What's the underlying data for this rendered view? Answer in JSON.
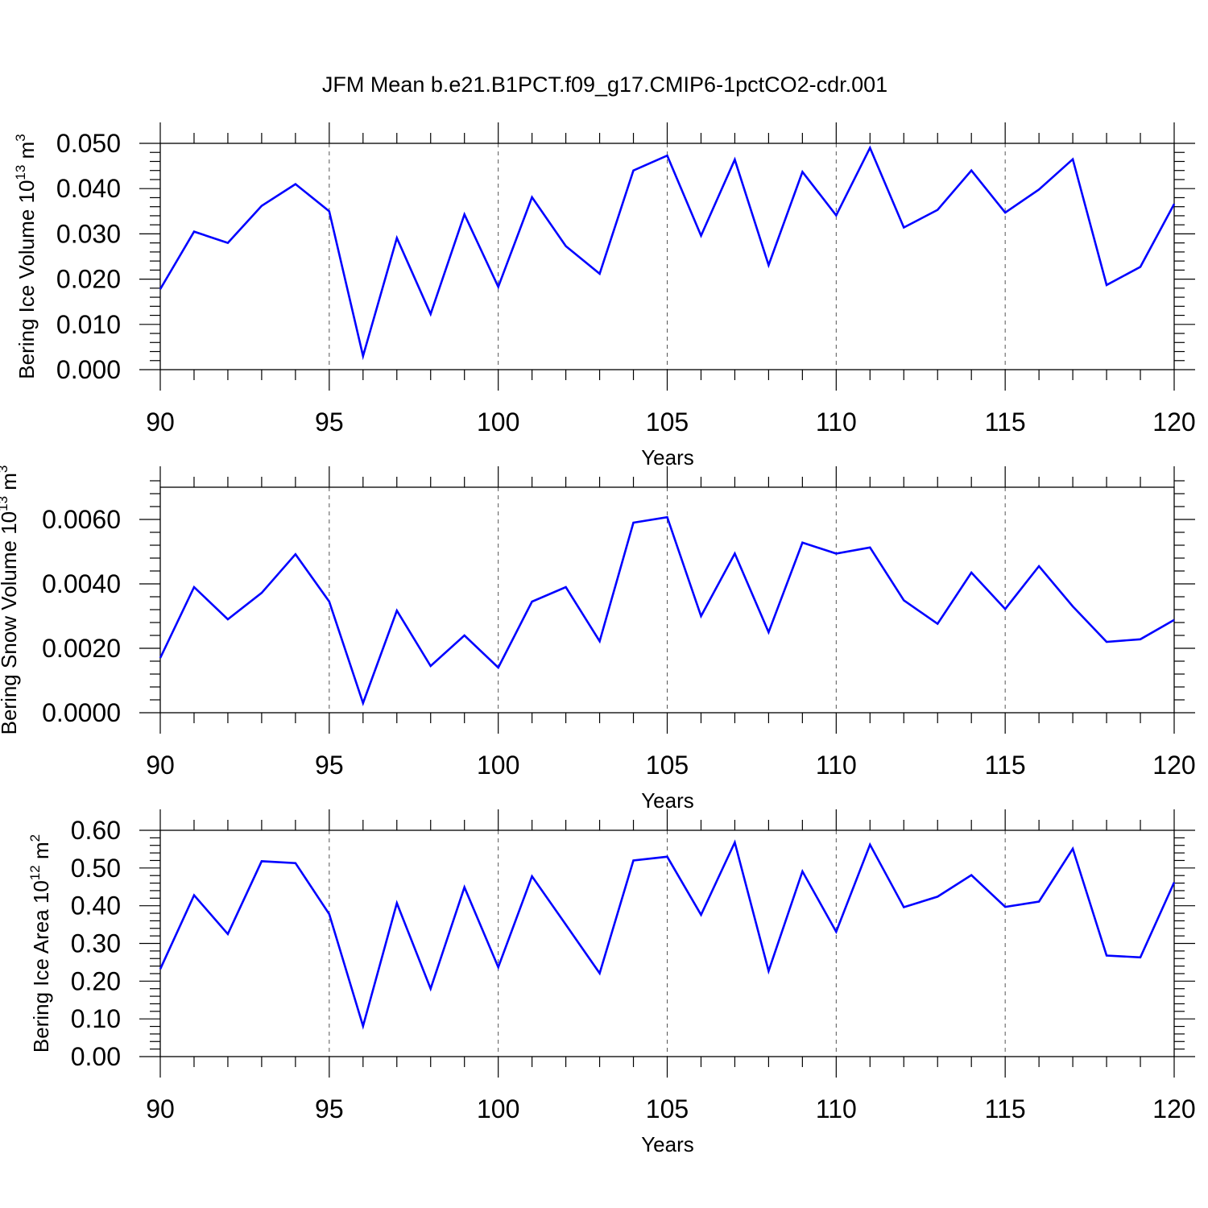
{
  "title": "JFM Mean b.e21.B1PCT.f09_g17.CMIP6-1pctCO2-cdr.001",
  "colors": {
    "line": "#0000ff",
    "axis": "#000000",
    "grid": "#555555"
  },
  "chart_data": [
    {
      "type": "line",
      "title": "",
      "xlabel": "Years",
      "ylabel_text": "Bering Ice Volume 10",
      "ylabel_exp": "13",
      "ylabel_unit": "m",
      "ylabel_unit_exp": "3",
      "xlim": [
        90,
        120
      ],
      "ylim": [
        0,
        0.05
      ],
      "x_ticks": [
        90,
        95,
        100,
        105,
        110,
        115,
        120
      ],
      "x_tick_labels": [
        "90",
        "95",
        "100",
        "105",
        "110",
        "115",
        "120"
      ],
      "y_ticks": [
        0,
        0.01,
        0.02,
        0.03,
        0.04,
        0.05
      ],
      "y_tick_labels": [
        "0.000",
        "0.010",
        "0.020",
        "0.030",
        "0.040",
        "0.050"
      ],
      "grid": "vertical dashed at major x ticks",
      "x": [
        90,
        91,
        92,
        93,
        94,
        95,
        96,
        97,
        98,
        99,
        100,
        101,
        102,
        103,
        104,
        105,
        106,
        107,
        108,
        109,
        110,
        111,
        112,
        113,
        114,
        115,
        116,
        117,
        118,
        119,
        120
      ],
      "values": [
        0.0178,
        0.0305,
        0.028,
        0.0362,
        0.041,
        0.035,
        0.003,
        0.0291,
        0.0123,
        0.0343,
        0.0183,
        0.0381,
        0.0273,
        0.0212,
        0.044,
        0.0473,
        0.0296,
        0.0464,
        0.0231,
        0.0437,
        0.0341,
        0.049,
        0.0314,
        0.0353,
        0.044,
        0.0347,
        0.0398,
        0.0465,
        0.0187,
        0.0227,
        0.0366
      ]
    },
    {
      "type": "line",
      "title": "",
      "xlabel": "Years",
      "ylabel_text": "Bering Snow Volume 10",
      "ylabel_exp": "13",
      "ylabel_unit": "m",
      "ylabel_unit_exp": "3",
      "xlim": [
        90,
        120
      ],
      "ylim": [
        0,
        0.007
      ],
      "x_ticks": [
        90,
        95,
        100,
        105,
        110,
        115,
        120
      ],
      "x_tick_labels": [
        "90",
        "95",
        "100",
        "105",
        "110",
        "115",
        "120"
      ],
      "y_ticks": [
        0,
        0.002,
        0.004,
        0.006
      ],
      "y_tick_labels": [
        "0.0000",
        "0.0020",
        "0.0040",
        "0.0060"
      ],
      "grid": "vertical dashed at major x ticks",
      "x": [
        90,
        91,
        92,
        93,
        94,
        95,
        96,
        97,
        98,
        99,
        100,
        101,
        102,
        103,
        104,
        105,
        106,
        107,
        108,
        109,
        110,
        111,
        112,
        113,
        114,
        115,
        116,
        117,
        118,
        119,
        120
      ],
      "values": [
        0.0017,
        0.0039,
        0.0029,
        0.00372,
        0.00492,
        0.00345,
        0.0003,
        0.00317,
        0.00145,
        0.0024,
        0.0014,
        0.00345,
        0.0039,
        0.00222,
        0.0059,
        0.00607,
        0.003,
        0.00494,
        0.0025,
        0.00528,
        0.00494,
        0.00513,
        0.00349,
        0.00276,
        0.00435,
        0.00322,
        0.00455,
        0.0033,
        0.0022,
        0.00228,
        0.00288
      ]
    },
    {
      "type": "line",
      "title": "",
      "xlabel": "Years",
      "ylabel_text": "Bering Ice Area 10",
      "ylabel_exp": "12",
      "ylabel_unit": "m",
      "ylabel_unit_exp": "2",
      "xlim": [
        90,
        120
      ],
      "ylim": [
        0,
        0.6
      ],
      "x_ticks": [
        90,
        95,
        100,
        105,
        110,
        115,
        120
      ],
      "x_tick_labels": [
        "90",
        "95",
        "100",
        "105",
        "110",
        "115",
        "120"
      ],
      "y_ticks": [
        0,
        0.1,
        0.2,
        0.3,
        0.4,
        0.5,
        0.6
      ],
      "y_tick_labels": [
        "0.00",
        "0.10",
        "0.20",
        "0.30",
        "0.40",
        "0.50",
        "0.60"
      ],
      "grid": "vertical dashed at major x ticks",
      "x": [
        90,
        91,
        92,
        93,
        94,
        95,
        96,
        97,
        98,
        99,
        100,
        101,
        102,
        103,
        104,
        105,
        106,
        107,
        108,
        109,
        110,
        111,
        112,
        113,
        114,
        115,
        116,
        117,
        118,
        119,
        120
      ],
      "values": [
        0.232,
        0.428,
        0.325,
        0.518,
        0.513,
        0.378,
        0.081,
        0.407,
        0.18,
        0.449,
        0.237,
        0.478,
        0.35,
        0.221,
        0.52,
        0.53,
        0.376,
        0.568,
        0.227,
        0.491,
        0.331,
        0.562,
        0.396,
        0.424,
        0.481,
        0.397,
        0.411,
        0.551,
        0.268,
        0.263,
        0.462
      ]
    }
  ]
}
